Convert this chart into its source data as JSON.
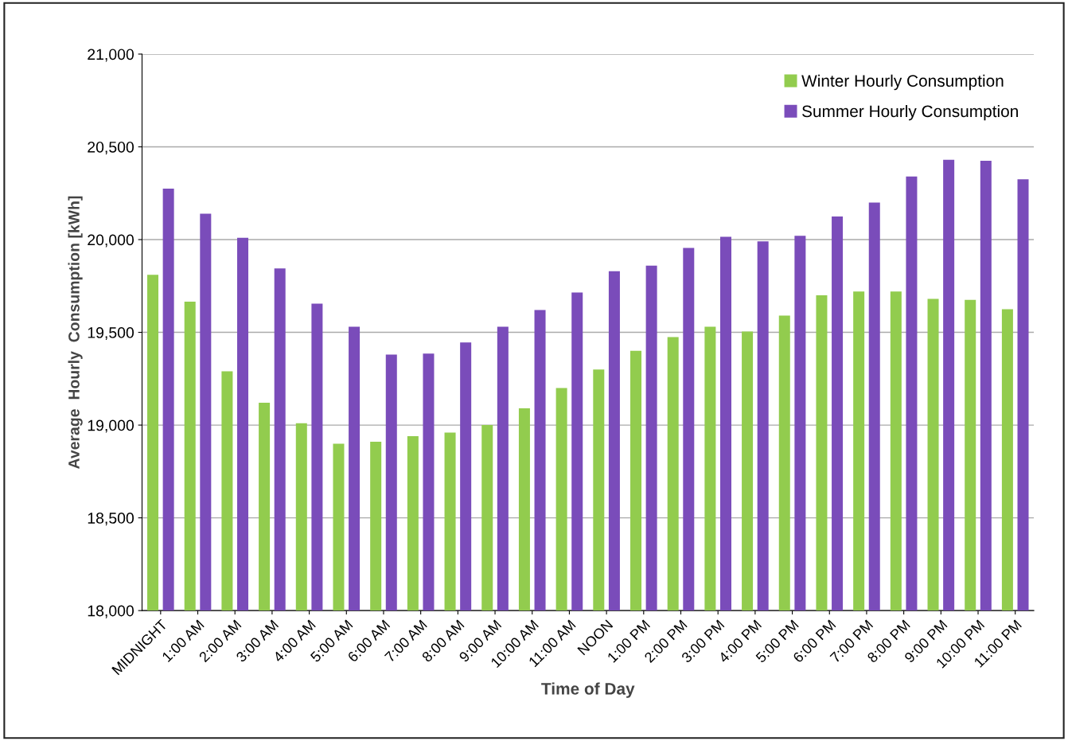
{
  "chart_data": {
    "type": "bar",
    "xlabel": "Time of Day",
    "ylabel": "Average  Hourly  Consumption [kWh]",
    "categories": [
      "MIDNIGHT",
      "1:00 AM",
      "2:00 AM",
      "3:00 AM",
      "4:00 AM",
      "5:00 AM",
      "6:00 AM",
      "7:00 AM",
      "8:00 AM",
      "9:00 AM",
      "10:00 AM",
      "11:00 AM",
      "NOON",
      "1:00 PM",
      "2:00 PM",
      "3:00 PM",
      "4:00 PM",
      "5:00 PM",
      "6:00 PM",
      "7:00 PM",
      "8:00 PM",
      "9:00 PM",
      "10:00 PM",
      "11:00 PM"
    ],
    "series": [
      {
        "name": "Winter Hourly Consumption",
        "color": "#92cc4e",
        "values": [
          19810,
          19665,
          19290,
          19120,
          19010,
          18900,
          18910,
          18940,
          18960,
          19000,
          19090,
          19200,
          19300,
          19400,
          19475,
          19530,
          19505,
          19590,
          19700,
          19720,
          19720,
          19680,
          19675,
          19625
        ]
      },
      {
        "name": "Summer Hourly Consumption",
        "color": "#7a4cba",
        "values": [
          20275,
          20140,
          20010,
          19845,
          19655,
          19530,
          19380,
          19385,
          19445,
          19530,
          19620,
          19715,
          19830,
          19860,
          19955,
          20015,
          19990,
          20020,
          20125,
          20200,
          20340,
          20430,
          20425,
          20325
        ]
      }
    ],
    "ylim": [
      18000,
      21000
    ],
    "yticks": [
      {
        "value": 18000,
        "label": "18,000"
      },
      {
        "value": 18500,
        "label": "18,500"
      },
      {
        "value": 19000,
        "label": "19,000"
      },
      {
        "value": 19500,
        "label": "19,500"
      },
      {
        "value": 20000,
        "label": "20,000"
      },
      {
        "value": 20500,
        "label": "20,500"
      },
      {
        "value": 21000,
        "label": "21,000"
      }
    ],
    "grid": "y",
    "legend": "top right"
  }
}
